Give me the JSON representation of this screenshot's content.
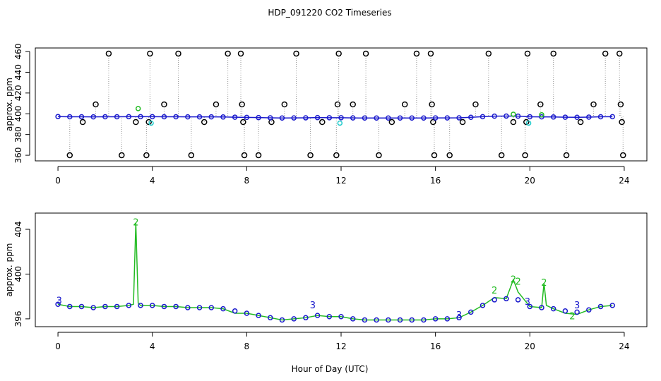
{
  "chart_data": [
    {
      "type": "scatter",
      "title": "HDP_091220  CO2 Timeseries",
      "ylabel": "approx. ppm",
      "xlim": [
        -0.96,
        24.96
      ],
      "xticks": [
        0,
        4,
        8,
        12,
        16,
        20,
        24
      ],
      "ylim": [
        354.6,
        463.4
      ],
      "yticks": [
        360,
        380,
        400,
        420,
        440,
        460
      ],
      "series": [
        {
          "color": "#000000",
          "style": "spike-points",
          "x": [
            0.5,
            1.05,
            1.6,
            2.15,
            2.7,
            3.3,
            3.75,
            3.85,
            3.9,
            4.5,
            5.1,
            5.65,
            6.2,
            6.7,
            7.2,
            7.75,
            7.8,
            7.85,
            7.9,
            8.5,
            9.05,
            9.6,
            10.1,
            10.7,
            11.2,
            11.8,
            11.85,
            11.9,
            12.5,
            13.05,
            13.6,
            14.15,
            14.7,
            15.2,
            15.8,
            15.85,
            15.9,
            15.95,
            16.6,
            17.15,
            17.7,
            18.25,
            18.8,
            19.3,
            19.8,
            19.85,
            19.9,
            20.45,
            21.0,
            21.55,
            22.15,
            22.7,
            23.2,
            23.8,
            23.85,
            23.9,
            23.95
          ],
          "values": [
            360,
            392,
            409,
            458,
            360,
            392,
            360,
            392,
            458,
            409,
            458,
            360,
            392,
            409,
            458,
            458,
            409,
            392,
            360,
            360,
            392,
            409,
            458,
            360,
            392,
            360,
            409,
            458,
            409,
            458,
            360,
            392,
            409,
            458,
            458,
            409,
            392,
            360,
            360,
            392,
            409,
            458,
            360,
            392,
            360,
            392,
            458,
            409,
            458,
            360,
            392,
            409,
            458,
            458,
            409,
            392,
            360
          ]
        },
        {
          "color": "#1a1acc",
          "style": "line+points",
          "x": [
            0,
            0.5,
            1,
            1.5,
            2,
            2.5,
            3,
            3.5,
            4,
            4.5,
            5,
            5.5,
            6,
            6.5,
            7,
            7.5,
            8,
            8.5,
            9,
            9.5,
            10,
            10.5,
            11,
            11.5,
            12,
            12.5,
            13,
            13.5,
            14,
            14.5,
            15,
            15.5,
            16,
            16.5,
            17,
            17.5,
            18,
            18.5,
            19,
            19.5,
            20,
            20.5,
            21,
            21.5,
            22,
            22.5,
            23,
            23.5
          ],
          "values": [
            397.3,
            397.1,
            397.1,
            397.0,
            397.1,
            397.1,
            397.2,
            397.2,
            397.2,
            397.1,
            397.1,
            397.0,
            397.0,
            397.0,
            396.9,
            396.7,
            396.5,
            396.3,
            396.1,
            395.9,
            396.0,
            396.1,
            396.3,
            396.2,
            396.2,
            396.0,
            395.9,
            395.9,
            395.9,
            395.9,
            395.9,
            395.9,
            396.0,
            396.0,
            396.1,
            396.6,
            397.2,
            397.7,
            397.8,
            397.7,
            397.1,
            397.0,
            396.9,
            396.7,
            396.6,
            396.8,
            397.1,
            397.2
          ]
        },
        {
          "color": "#22bb22",
          "style": "points",
          "x": [
            3.4,
            19.3,
            20.5
          ],
          "values": [
            405,
            399.5,
            399
          ]
        },
        {
          "color": "#22cccc",
          "style": "points",
          "x": [
            3.95,
            11.95,
            19.95
          ],
          "values": [
            391,
            391,
            391
          ]
        }
      ]
    },
    {
      "type": "scatter",
      "ylabel": "approx. ppm",
      "xlabel": "Hour of Day (UTC)",
      "xlim": [
        -0.96,
        24.96
      ],
      "xticks": [
        0,
        4,
        8,
        12,
        16,
        20,
        24
      ],
      "ylim": [
        395.3,
        405.45
      ],
      "yticks": [
        396,
        400,
        404
      ],
      "series": [
        {
          "color": "#22bb22",
          "style": "line",
          "x": [
            0,
            0.5,
            1,
            1.5,
            2,
            2.5,
            3,
            3.2,
            3.3,
            3.4,
            3.5,
            4,
            4.5,
            5,
            5.5,
            6,
            6.5,
            7,
            7.5,
            8,
            8.5,
            9,
            9.5,
            10,
            10.5,
            11,
            11.5,
            12,
            12.5,
            13,
            13.5,
            14,
            14.5,
            15,
            15.5,
            16,
            16.5,
            17,
            17.5,
            18,
            18.5,
            19,
            19.3,
            19.5,
            20,
            20.5,
            20.6,
            20.7,
            21,
            21.5,
            22,
            22.5,
            23,
            23.5
          ],
          "values": [
            397.3,
            397.1,
            397.1,
            397.0,
            397.1,
            397.1,
            397.2,
            397.3,
            404.6,
            397.4,
            397.2,
            397.2,
            397.1,
            397.1,
            397.0,
            397.0,
            397.0,
            396.9,
            396.5,
            396.5,
            396.3,
            396.1,
            395.9,
            396.0,
            396.1,
            396.3,
            396.2,
            396.2,
            396.0,
            395.9,
            395.9,
            395.9,
            395.9,
            395.9,
            395.9,
            396.0,
            396.0,
            396.1,
            396.6,
            397.2,
            397.9,
            397.8,
            399.5,
            398.4,
            397.1,
            397.0,
            399.2,
            397.2,
            396.9,
            396.5,
            396.4,
            396.8,
            397.1,
            397.2
          ]
        },
        {
          "color": "#1a1acc",
          "style": "points",
          "x": [
            0,
            0.5,
            1,
            1.5,
            2,
            2.5,
            3,
            3.5,
            4,
            4.5,
            5,
            5.5,
            6,
            6.5,
            7,
            7.5,
            8,
            8.5,
            9,
            9.5,
            10,
            10.5,
            11,
            11.5,
            12,
            12.5,
            13,
            13.5,
            14,
            14.5,
            15,
            15.5,
            16,
            16.5,
            17,
            17.5,
            18,
            18.5,
            19,
            19.5,
            20,
            20.5,
            21,
            21.5,
            22,
            22.5,
            23,
            23.5
          ],
          "values": [
            397.3,
            397.1,
            397.1,
            397.0,
            397.1,
            397.1,
            397.2,
            397.2,
            397.2,
            397.1,
            397.1,
            397.0,
            397.0,
            397.0,
            396.9,
            396.7,
            396.5,
            396.3,
            396.1,
            395.9,
            396.0,
            396.1,
            396.3,
            396.2,
            396.2,
            396.0,
            395.9,
            395.9,
            395.9,
            395.9,
            395.9,
            395.9,
            396.0,
            396.0,
            396.1,
            396.6,
            397.2,
            397.7,
            397.8,
            397.7,
            397.1,
            397.0,
            396.9,
            396.7,
            396.6,
            396.8,
            397.1,
            397.2
          ]
        },
        {
          "color": "#22bb22",
          "style": "text",
          "marker": "2",
          "x": [
            3.3,
            18.5,
            19.3,
            19.5,
            20.6,
            21.8
          ],
          "values": [
            404.6,
            398.5,
            399.5,
            399.3,
            399.2,
            396.2
          ]
        },
        {
          "color": "#1a1acc",
          "style": "text",
          "marker": "3",
          "x": [
            0.05,
            10.8,
            17.0,
            19.9,
            22.0
          ],
          "values": [
            397.6,
            397.2,
            396.3,
            397.5,
            397.2
          ]
        }
      ]
    }
  ]
}
